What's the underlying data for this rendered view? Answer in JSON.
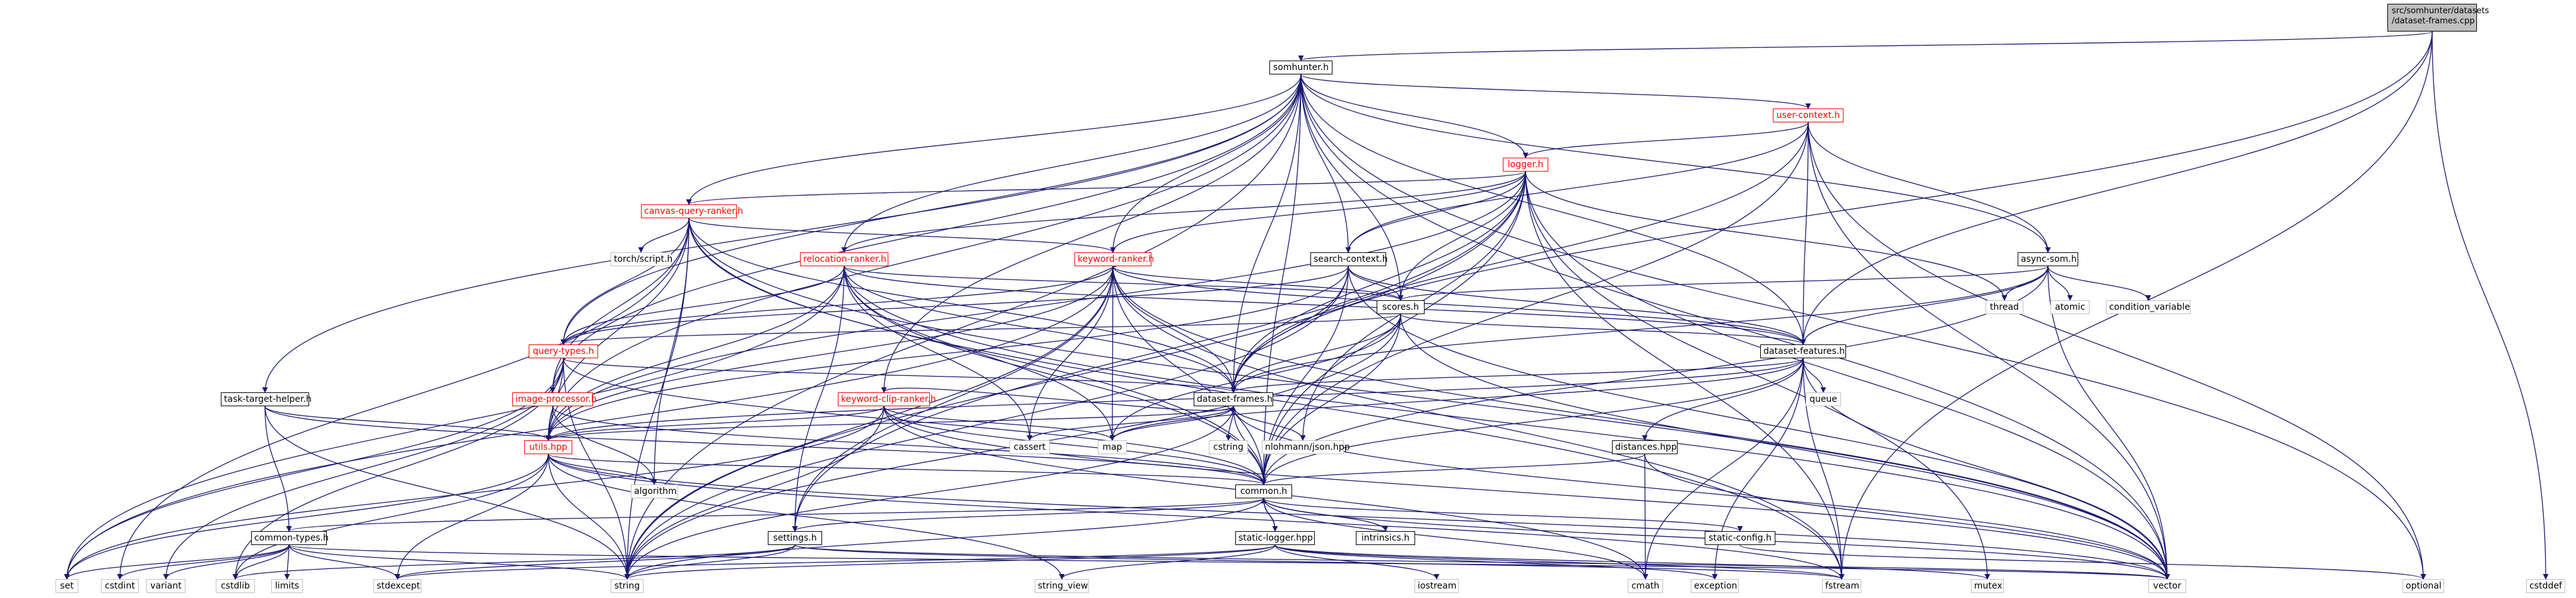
{
  "root": {
    "line1": "src/somhunter/datasets",
    "line2": "/dataset-frames.cpp"
  },
  "nodes": {
    "somhunter_h": "somhunter.h",
    "user_context_h": "user-context.h",
    "logger_h": "logger.h",
    "canvas_query_ranker_h": "canvas-query-ranker.h",
    "search_context_h": "search-context.h",
    "async_som_h": "async-som.h",
    "relocation_ranker_h": "relocation-ranker.h",
    "keyword_ranker_h": "keyword-ranker.h",
    "scores_h": "scores.h",
    "query_types_h": "query-types.h",
    "dataset_features_h": "dataset-features.h",
    "torch_script_h": "torch/script.h",
    "thread": "thread",
    "atomic": "atomic",
    "condition_variable": "condition_variable",
    "image_processor_h": "image-processor.h",
    "task_target_helper_h": "task-target-helper.h",
    "keyword_clip_ranker_h": "keyword-clip-ranker.h",
    "dataset_frames_h": "dataset-frames.h",
    "queue": "queue",
    "cassert": "cassert",
    "map": "map",
    "cstring": "cstring",
    "nlohmann_json_hpp": "nlohmann/json.hpp",
    "utils_hpp": "utils.hpp",
    "distances_hpp": "distances.hpp",
    "algorithm": "algorithm",
    "common_h": "common.h",
    "intrinsics_h": "intrinsics.h",
    "static_config_h": "static-config.h",
    "common_types_h": "common-types.h",
    "settings_h": "settings.h",
    "static_logger_hpp": "static-logger.hpp",
    "set": "set",
    "cstdint": "cstdint",
    "variant": "variant",
    "cstdlib": "cstdlib",
    "limits": "limits",
    "stdexcept": "stdexcept",
    "string": "string",
    "string_view": "string_view",
    "iostream": "iostream",
    "cmath": "cmath",
    "exception": "exception",
    "fstream": "fstream",
    "mutex": "mutex",
    "vector": "vector",
    "optional": "optional",
    "cstddef": "cstddef"
  },
  "colors": {
    "edge": "#191970",
    "project_border": "#ff0000",
    "external_border": "#c0c0c0",
    "root_fill": "#bfbfbf"
  }
}
